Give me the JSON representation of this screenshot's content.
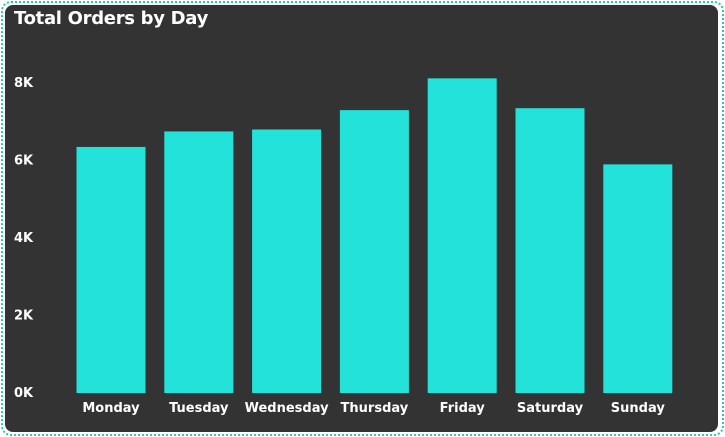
{
  "chart_data": {
    "type": "bar",
    "title": "Total Orders by Day",
    "categories": [
      "Monday",
      "Tuesday",
      "Wednesday",
      "Thursday",
      "Friday",
      "Saturday",
      "Sunday"
    ],
    "values": [
      6350,
      6750,
      6800,
      7300,
      8120,
      7350,
      5900
    ],
    "y_ticks": [
      "0K",
      "2K",
      "4K",
      "6K",
      "8K"
    ],
    "y_tick_values": [
      0,
      2000,
      4000,
      6000,
      8000
    ],
    "ylim": [
      0,
      8000
    ],
    "xlabel": "",
    "ylabel": "",
    "grid": false,
    "bar_color": "#22e2d9",
    "background_color": "#333333",
    "text_color": "#ffffff"
  }
}
